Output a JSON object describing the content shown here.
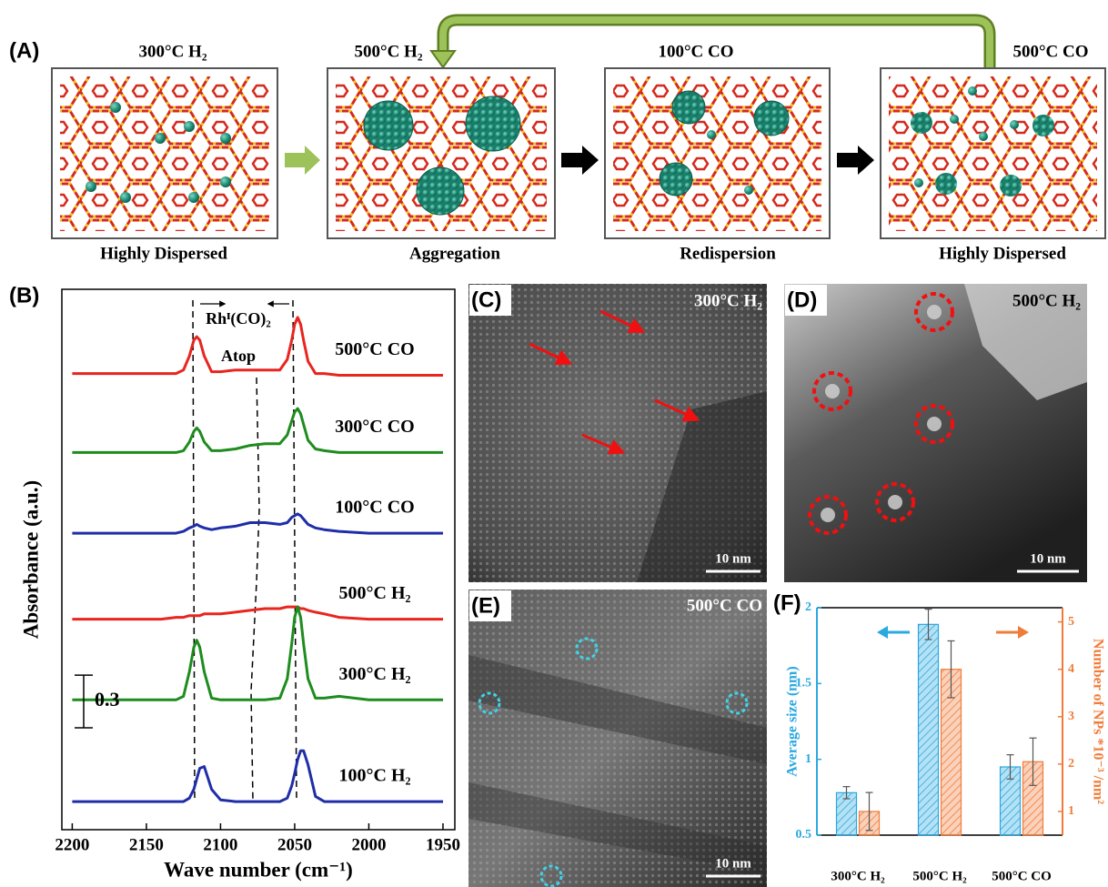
{
  "figure": {
    "panel_a": {
      "label": "(A)",
      "steps": [
        {
          "condition": "300°C H₂",
          "state": "Highly Dispersed"
        },
        {
          "condition": "500°C H₂",
          "state": "Aggregation"
        },
        {
          "condition": "100°C CO",
          "state": "Redispersion"
        },
        {
          "condition": "500°C CO",
          "state": "Highly Dispersed"
        }
      ]
    },
    "images": [
      {
        "label": "(C)",
        "condition": "300°C H₂",
        "scale": "10 nm"
      },
      {
        "label": "(D)",
        "condition": "500°C H₂",
        "scale": "10 nm"
      },
      {
        "label": "(E)",
        "condition": "500°C CO",
        "scale": "10 nm"
      }
    ]
  },
  "chart_data": [
    {
      "type": "line",
      "panel_label": "(B)",
      "xlabel": "Wave number (cm⁻¹)",
      "ylabel": "Absorbance (a.u.)",
      "annotations": [
        "Rhᴵ(CO)₂",
        "Atop"
      ],
      "scale_bar": 0.3,
      "xlim": [
        2207,
        1942
      ],
      "xticks": [
        2200,
        2150,
        2100,
        2050,
        2000,
        1950
      ],
      "ylim": [
        0,
        3.08
      ],
      "x": [
        2200,
        2170,
        2140,
        2130,
        2125,
        2121,
        2118,
        2116,
        2114,
        2111,
        2106,
        2100,
        2090,
        2080,
        2070,
        2060,
        2055,
        2052,
        2050,
        2048,
        2046,
        2044,
        2041,
        2036,
        2030,
        2020,
        2000,
        1980,
        1950
      ],
      "series": [
        {
          "name": "500°C CO",
          "color": "#e8251f",
          "values": [
            2.6,
            2.6,
            2.6,
            2.6,
            2.62,
            2.7,
            2.79,
            2.81,
            2.79,
            2.7,
            2.61,
            2.61,
            2.62,
            2.62,
            2.62,
            2.62,
            2.68,
            2.79,
            2.88,
            2.92,
            2.88,
            2.79,
            2.67,
            2.6,
            2.6,
            2.59,
            2.59,
            2.59,
            2.59
          ]
        },
        {
          "name": "300°C CO",
          "color": "#1e8c1e",
          "values": [
            2.15,
            2.15,
            2.15,
            2.15,
            2.16,
            2.21,
            2.27,
            2.29,
            2.27,
            2.21,
            2.16,
            2.16,
            2.17,
            2.19,
            2.2,
            2.2,
            2.25,
            2.33,
            2.38,
            2.4,
            2.37,
            2.31,
            2.22,
            2.17,
            2.16,
            2.15,
            2.15,
            2.15,
            2.15
          ]
        },
        {
          "name": "100°C CO",
          "color": "#1f2ea8",
          "values": [
            1.69,
            1.69,
            1.69,
            1.69,
            1.7,
            1.72,
            1.73,
            1.74,
            1.73,
            1.72,
            1.71,
            1.72,
            1.73,
            1.75,
            1.75,
            1.74,
            1.75,
            1.78,
            1.79,
            1.8,
            1.79,
            1.77,
            1.74,
            1.72,
            1.71,
            1.7,
            1.69,
            1.69,
            1.69
          ]
        },
        {
          "name": "500°C H₂",
          "color": "#e8251f",
          "values": [
            1.2,
            1.2,
            1.2,
            1.21,
            1.21,
            1.22,
            1.22,
            1.22,
            1.22,
            1.23,
            1.23,
            1.23,
            1.24,
            1.25,
            1.26,
            1.26,
            1.27,
            1.27,
            1.27,
            1.27,
            1.26,
            1.26,
            1.25,
            1.24,
            1.23,
            1.21,
            1.2,
            1.2,
            1.2
          ]
        },
        {
          "name": "300°C H₂",
          "color": "#1e8c1e",
          "values": [
            0.74,
            0.74,
            0.74,
            0.74,
            0.76,
            0.9,
            1.04,
            1.08,
            1.04,
            0.9,
            0.75,
            0.74,
            0.74,
            0.74,
            0.74,
            0.75,
            0.86,
            1.06,
            1.21,
            1.27,
            1.21,
            1.06,
            0.86,
            0.75,
            0.75,
            0.76,
            0.74,
            0.74,
            0.74
          ]
        },
        {
          "name": "100°C H₂",
          "color": "#1f2ea8",
          "values": [
            0.16,
            0.16,
            0.16,
            0.16,
            0.16,
            0.18,
            0.23,
            0.29,
            0.35,
            0.36,
            0.23,
            0.17,
            0.16,
            0.16,
            0.16,
            0.16,
            0.18,
            0.25,
            0.32,
            0.4,
            0.45,
            0.45,
            0.37,
            0.19,
            0.16,
            0.16,
            0.16,
            0.16,
            0.16
          ]
        }
      ]
    },
    {
      "type": "bar",
      "panel_label": "(F)",
      "ylabel": "Average size (nm)",
      "y2label": "Number of NPs *10⁻³ /nm²",
      "categories": [
        "300°C H₂",
        "500°C H₂",
        "500°C CO"
      ],
      "ylim": [
        0.5,
        2.0
      ],
      "yticks": [
        0.5,
        1,
        1.5,
        2
      ],
      "y2lim": [
        0.5,
        5.3
      ],
      "y2ticks": [
        1,
        2,
        3,
        4,
        5
      ],
      "series": [
        {
          "color": "#2aa8e0",
          "values": [
            0.78,
            1.89,
            0.95
          ],
          "errors": [
            0.04,
            0.1,
            0.08
          ]
        },
        {
          "color": "#f07c3a",
          "axis": "y2",
          "values": [
            1.0,
            4.0,
            2.05
          ],
          "errors": [
            0.4,
            0.6,
            0.5
          ]
        }
      ]
    }
  ]
}
